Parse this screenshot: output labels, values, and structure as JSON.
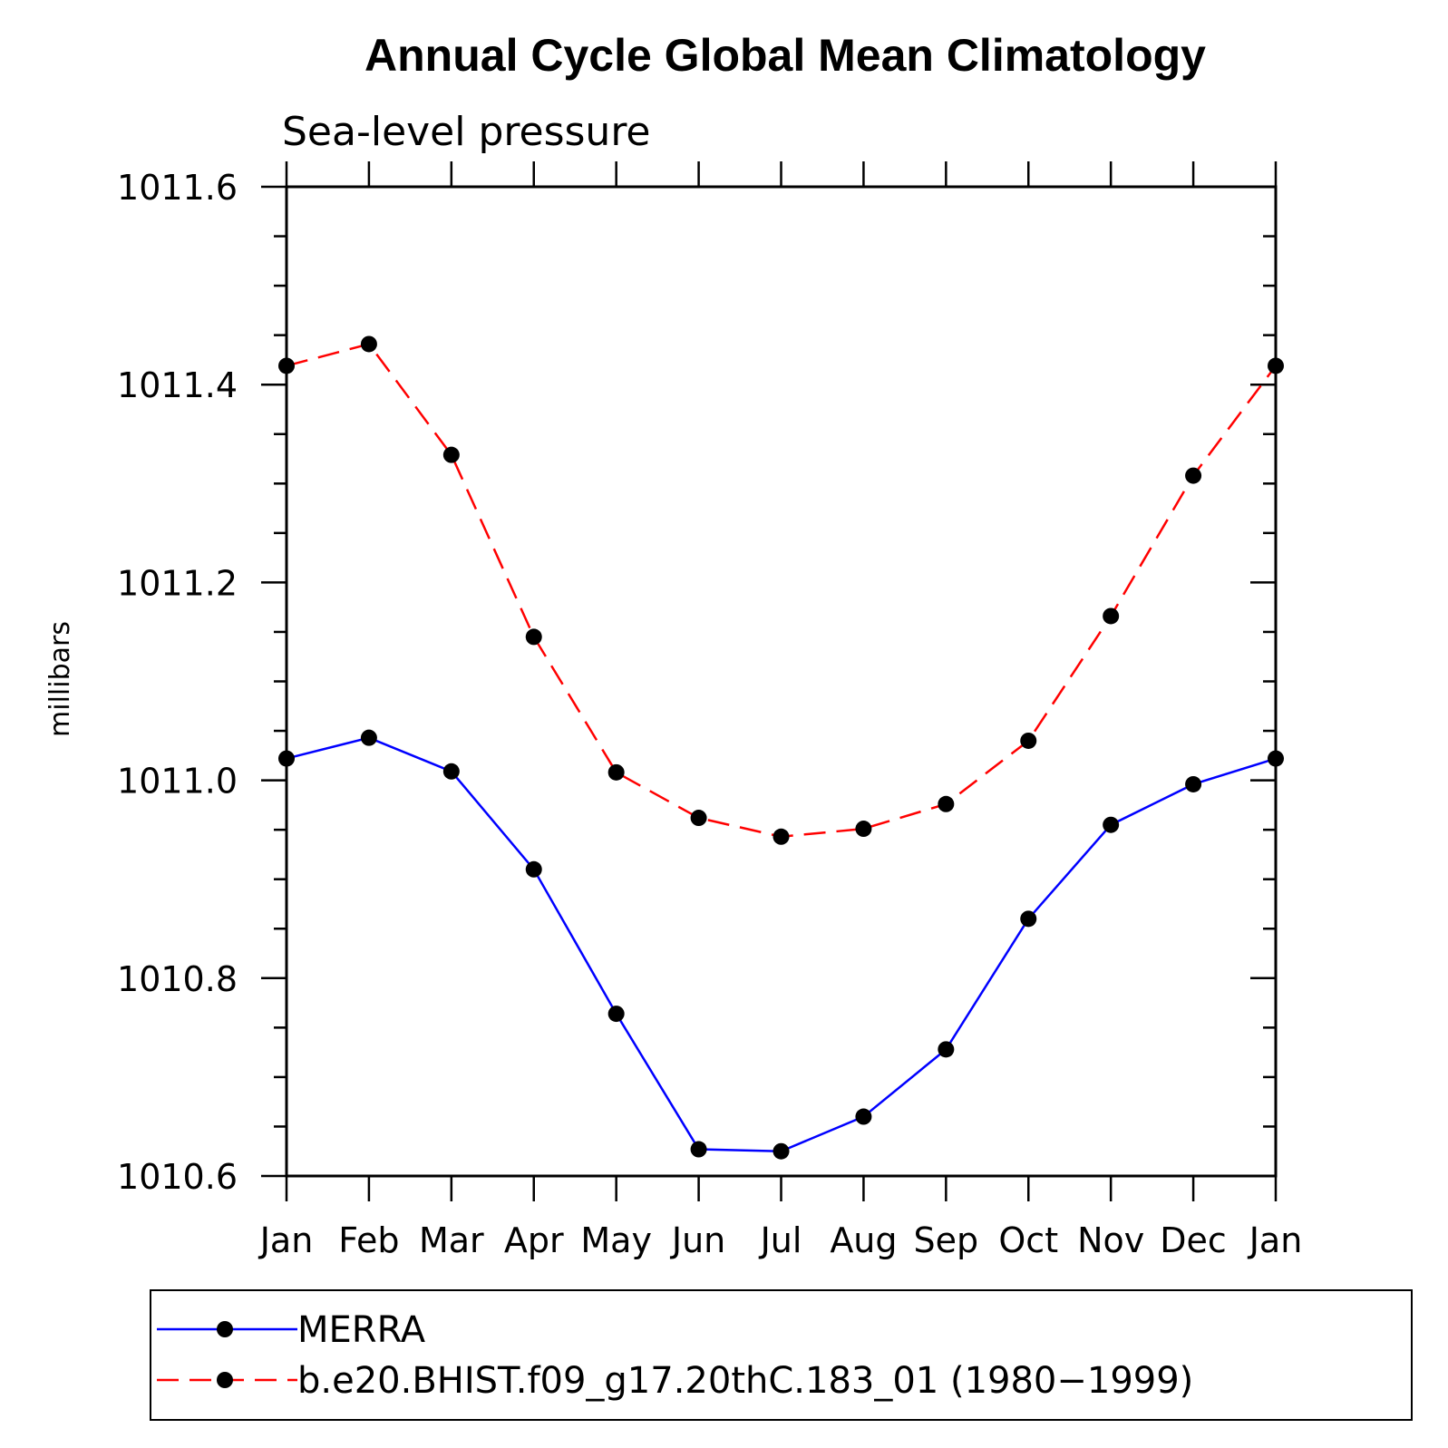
{
  "chart_data": {
    "type": "line",
    "title": "Annual Cycle Global Mean Climatology",
    "subtitle": "Sea-level pressure",
    "xlabel": "",
    "ylabel": "millibars",
    "categories": [
      "Jan",
      "Feb",
      "Mar",
      "Apr",
      "May",
      "Jun",
      "Jul",
      "Aug",
      "Sep",
      "Oct",
      "Nov",
      "Dec",
      "Jan"
    ],
    "ylim": [
      1010.6,
      1011.6
    ],
    "yticks": [
      "1010.6",
      "1010.8",
      "1011.0",
      "1011.2",
      "1011.4",
      "1011.6"
    ],
    "series": [
      {
        "name": "MERRA",
        "color": "#0000ff",
        "line_style": "solid",
        "marker": "filled-circle",
        "values": [
          1011.022,
          1011.043,
          1011.009,
          1010.91,
          1010.764,
          1010.627,
          1010.625,
          1010.66,
          1010.728,
          1010.86,
          1010.955,
          1010.996,
          1011.022
        ]
      },
      {
        "name": "b.e20.BHIST.f09_g17.20thC.183_01 (1980−1999)",
        "color": "#ff0000",
        "line_style": "dashed",
        "marker": "filled-circle",
        "values": [
          1011.419,
          1011.441,
          1011.329,
          1011.145,
          1011.008,
          1010.962,
          1010.943,
          1010.951,
          1010.976,
          1011.04,
          1011.166,
          1011.308,
          1011.419
        ]
      }
    ],
    "legend_placement": "bottom",
    "grid": false
  }
}
